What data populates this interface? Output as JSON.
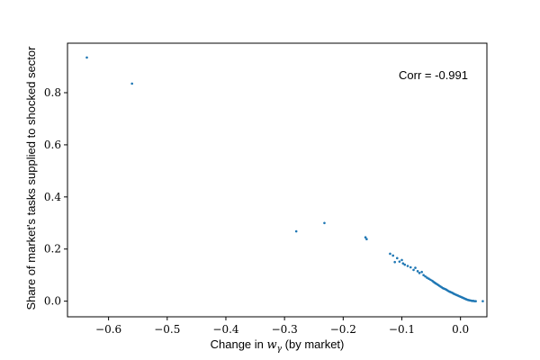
{
  "chart_data": {
    "type": "scatter",
    "xlabel": {
      "prefix": "Change in ",
      "math": "w",
      "math_sub": "γ",
      "suffix": " (by market)"
    },
    "ylabel": "Share of market's tasks supplied to shocked sector",
    "annotation": "Corr = -0.991",
    "xlim": [
      -0.67,
      0.045
    ],
    "ylim": [
      -0.06,
      0.99
    ],
    "xticks": [
      {
        "value": -0.6,
        "label": "−0.6"
      },
      {
        "value": -0.5,
        "label": "−0.5"
      },
      {
        "value": -0.4,
        "label": "−0.4"
      },
      {
        "value": -0.3,
        "label": "−0.3"
      },
      {
        "value": -0.2,
        "label": "−0.2"
      },
      {
        "value": -0.1,
        "label": "−0.1"
      },
      {
        "value": 0.0,
        "label": "0.0"
      }
    ],
    "yticks": [
      {
        "value": 0.0,
        "label": "0.0"
      },
      {
        "value": 0.2,
        "label": "0.2"
      },
      {
        "value": 0.4,
        "label": "0.4"
      },
      {
        "value": 0.6,
        "label": "0.6"
      },
      {
        "value": 0.8,
        "label": "0.8"
      }
    ],
    "grid": false,
    "marker_color": "#1f77b4",
    "points": [
      [
        -0.637,
        0.935
      ],
      [
        -0.56,
        0.835
      ],
      [
        -0.28,
        0.268
      ],
      [
        -0.232,
        0.3
      ],
      [
        -0.162,
        0.245
      ],
      [
        -0.16,
        0.238
      ],
      [
        -0.12,
        0.182
      ],
      [
        -0.115,
        0.175
      ],
      [
        -0.112,
        0.15
      ],
      [
        -0.108,
        0.165
      ],
      [
        -0.104,
        0.152
      ],
      [
        -0.1,
        0.158
      ],
      [
        -0.098,
        0.145
      ],
      [
        -0.095,
        0.14
      ],
      [
        -0.09,
        0.135
      ],
      [
        -0.085,
        0.13
      ],
      [
        -0.08,
        0.12
      ],
      [
        -0.077,
        0.128
      ],
      [
        -0.073,
        0.115
      ],
      [
        -0.07,
        0.108
      ],
      [
        -0.066,
        0.112
      ],
      [
        -0.063,
        0.1
      ],
      [
        -0.06,
        0.095
      ],
      [
        -0.057,
        0.09
      ],
      [
        -0.054,
        0.086
      ],
      [
        -0.051,
        0.082
      ],
      [
        -0.048,
        0.078
      ],
      [
        -0.046,
        0.074
      ],
      [
        -0.044,
        0.071
      ],
      [
        -0.042,
        0.068
      ],
      [
        -0.04,
        0.065
      ],
      [
        -0.038,
        0.062
      ],
      [
        -0.036,
        0.059
      ],
      [
        -0.034,
        0.056
      ],
      [
        -0.032,
        0.053
      ],
      [
        -0.03,
        0.05
      ],
      [
        -0.028,
        0.048
      ],
      [
        -0.026,
        0.046
      ],
      [
        -0.024,
        0.044
      ],
      [
        -0.022,
        0.041
      ],
      [
        -0.02,
        0.038
      ],
      [
        -0.018,
        0.036
      ],
      [
        -0.016,
        0.034
      ],
      [
        -0.014,
        0.032
      ],
      [
        -0.012,
        0.029
      ],
      [
        -0.01,
        0.027
      ],
      [
        -0.008,
        0.025
      ],
      [
        -0.006,
        0.023
      ],
      [
        -0.004,
        0.021
      ],
      [
        -0.002,
        0.019
      ],
      [
        0.0,
        0.017
      ],
      [
        0.002,
        0.015
      ],
      [
        0.004,
        0.013
      ],
      [
        0.006,
        0.011
      ],
      [
        0.008,
        0.009
      ],
      [
        0.01,
        0.007
      ],
      [
        0.012,
        0.005
      ],
      [
        0.014,
        0.004
      ],
      [
        0.016,
        0.003
      ],
      [
        0.018,
        0.002
      ],
      [
        0.02,
        0.001
      ],
      [
        0.022,
        0.001
      ],
      [
        0.024,
        0.0
      ],
      [
        0.026,
        0.0
      ],
      [
        0.038,
        0.0
      ]
    ]
  }
}
